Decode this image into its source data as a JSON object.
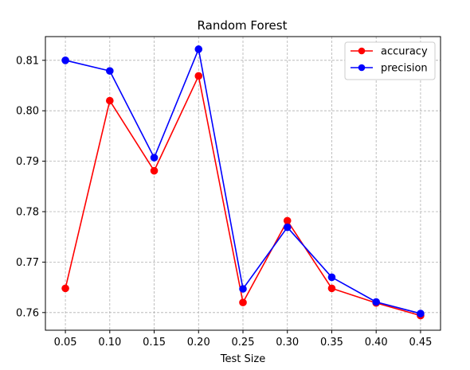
{
  "chart_data": {
    "type": "line",
    "title": "Random Forest",
    "xlabel": "Test Size",
    "ylabel": "",
    "x": [
      0.05,
      0.1,
      0.15,
      0.2,
      0.25,
      0.3,
      0.35,
      0.4,
      0.45
    ],
    "x_tick_labels": [
      "0.05",
      "0.10",
      "0.15",
      "0.20",
      "0.25",
      "0.30",
      "0.35",
      "0.40",
      "0.45"
    ],
    "y_ticks": [
      0.76,
      0.77,
      0.78,
      0.79,
      0.8,
      0.81
    ],
    "y_tick_labels": [
      "0.76",
      "0.77",
      "0.78",
      "0.79",
      "0.80",
      "0.81"
    ],
    "xlim": [
      0.0275,
      0.4725
    ],
    "ylim": [
      0.7565,
      0.8147
    ],
    "grid": true,
    "legend_position": "top-right",
    "series": [
      {
        "name": "accuracy",
        "color": "#ff0000",
        "marker": "circle",
        "values": [
          0.7648,
          0.802,
          0.7881,
          0.8069,
          0.762,
          0.7782,
          0.7648,
          0.7619,
          0.7594
        ]
      },
      {
        "name": "precision",
        "color": "#0000ff",
        "marker": "circle",
        "values": [
          0.81,
          0.8079,
          0.7907,
          0.8122,
          0.7647,
          0.7769,
          0.767,
          0.7621,
          0.7598
        ]
      }
    ]
  }
}
